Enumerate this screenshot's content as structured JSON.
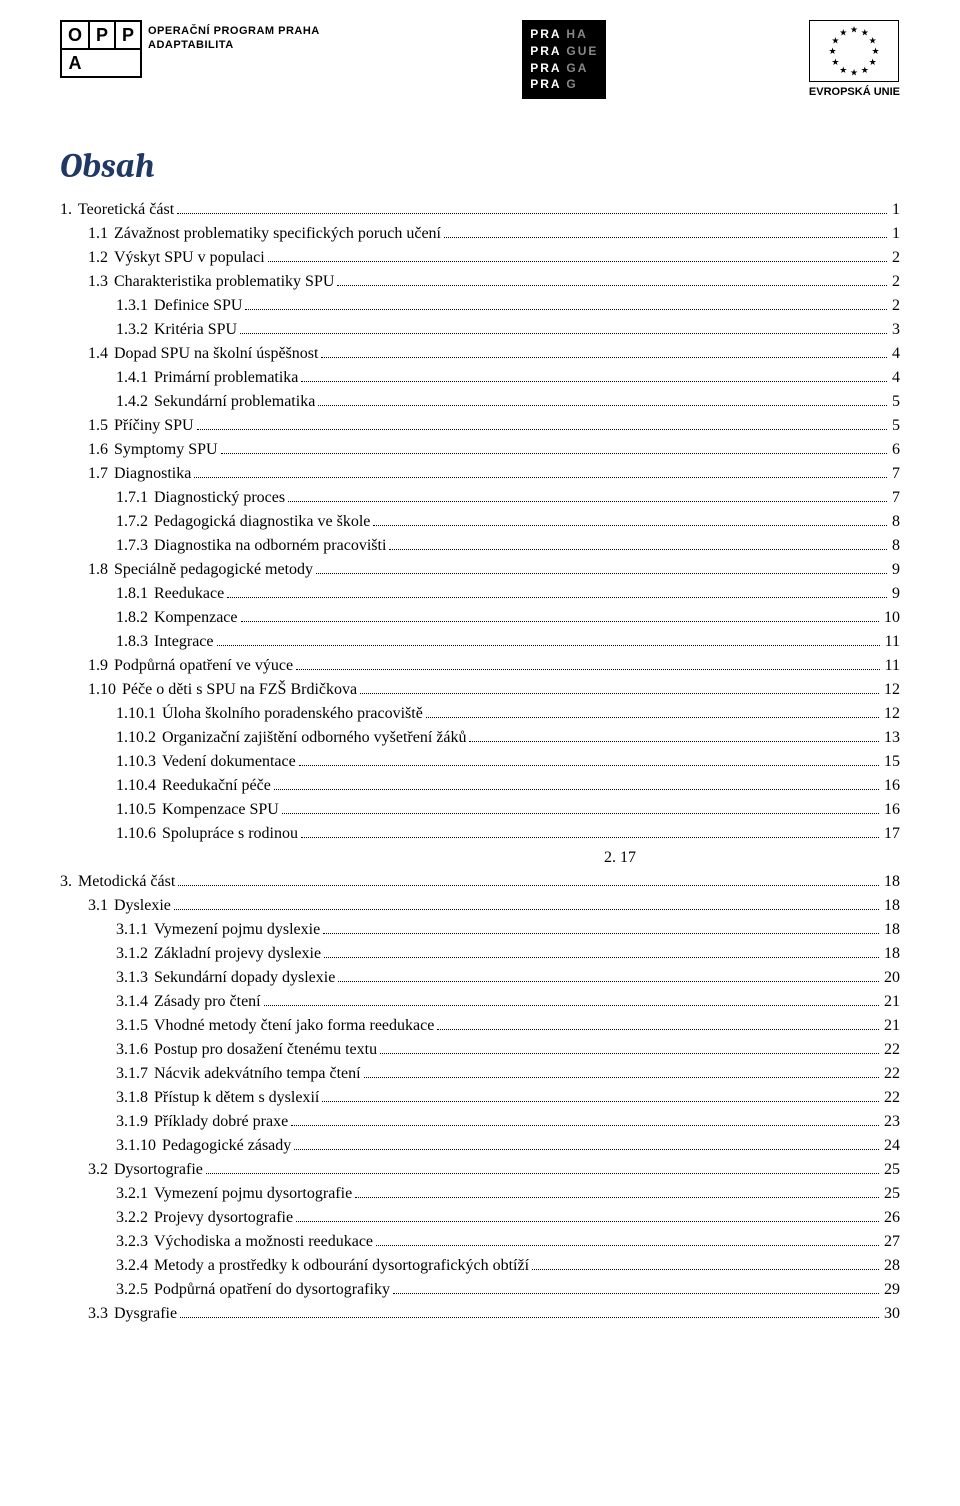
{
  "logos": {
    "oppa": {
      "letters": [
        "O",
        "P",
        "P",
        "A"
      ],
      "subtitle1": "OPERAČNÍ PROGRAM PRAHA",
      "subtitle2": "ADAPTABILITA"
    },
    "praha_lines": [
      [
        "PRA",
        "HA"
      ],
      [
        "PRA",
        "GUE"
      ],
      [
        "PRA",
        "GA"
      ],
      [
        "PRA",
        "G"
      ]
    ],
    "eu_label": "EVROPSKÁ UNIE"
  },
  "title": "Obsah",
  "colors": {
    "title_color": "#1f3864",
    "text_color": "#000000",
    "bg": "#ffffff"
  },
  "toc": [
    {
      "lvl": 1,
      "num": "1.",
      "text": "Teoretická část",
      "page": "1"
    },
    {
      "lvl": 2,
      "num": "1.1",
      "text": "Závažnost problematiky specifických poruch učení",
      "page": "1"
    },
    {
      "lvl": 2,
      "num": "1.2",
      "text": "Výskyt SPU v populaci",
      "page": "2"
    },
    {
      "lvl": 2,
      "num": "1.3",
      "text": "Charakteristika problematiky SPU",
      "page": "2"
    },
    {
      "lvl": 3,
      "num": "1.3.1",
      "text": "Definice SPU",
      "page": "2"
    },
    {
      "lvl": 3,
      "num": "1.3.2",
      "text": "Kritéria SPU",
      "page": "3"
    },
    {
      "lvl": 2,
      "num": "1.4",
      "text": "Dopad SPU na školní úspěšnost",
      "page": "4"
    },
    {
      "lvl": 3,
      "num": "1.4.1",
      "text": "Primární problematika",
      "page": "4"
    },
    {
      "lvl": 3,
      "num": "1.4.2",
      "text": "Sekundární problematika",
      "page": "5"
    },
    {
      "lvl": 2,
      "num": "1.5",
      "text": "Příčiny SPU",
      "page": "5"
    },
    {
      "lvl": 2,
      "num": "1.6",
      "text": "Symptomy SPU",
      "page": "6"
    },
    {
      "lvl": 2,
      "num": "1.7",
      "text": "Diagnostika",
      "page": "7"
    },
    {
      "lvl": 3,
      "num": "1.7.1",
      "text": "Diagnostický proces",
      "page": "7"
    },
    {
      "lvl": 3,
      "num": "1.7.2",
      "text": "Pedagogická diagnostika ve škole",
      "page": "8"
    },
    {
      "lvl": 3,
      "num": "1.7.3",
      "text": "Diagnostika na odborném pracovišti",
      "page": "8"
    },
    {
      "lvl": 2,
      "num": "1.8",
      "text": "Speciálně pedagogické metody",
      "page": "9"
    },
    {
      "lvl": 3,
      "num": "1.8.1",
      "text": "Reedukace",
      "page": "9"
    },
    {
      "lvl": 3,
      "num": "1.8.2",
      "text": "Kompenzace",
      "page": "10"
    },
    {
      "lvl": 3,
      "num": "1.8.3",
      "text": "Integrace",
      "page": "11"
    },
    {
      "lvl": 2,
      "num": "1.9",
      "text": "Podpůrná opatření ve výuce",
      "page": "11"
    },
    {
      "lvl": 2,
      "num": "1.10",
      "text": "Péče o děti s SPU na FZŠ Brdičkova",
      "page": "12"
    },
    {
      "lvl": 3,
      "num": "1.10.1",
      "text": "Úloha školního poradenského pracoviště",
      "page": "12"
    },
    {
      "lvl": 3,
      "num": "1.10.2",
      "text": "Organizační zajištění odborného vyšetření žáků",
      "page": "13"
    },
    {
      "lvl": 3,
      "num": "1.10.3",
      "text": "Vedení dokumentace",
      "page": "15"
    },
    {
      "lvl": 3,
      "num": "1.10.4",
      "text": "Reedukační péče",
      "page": "16"
    },
    {
      "lvl": 3,
      "num": "1.10.5",
      "text": "Kompenzace SPU",
      "page": "16"
    },
    {
      "lvl": 3,
      "num": "1.10.6",
      "text": "Spolupráce s rodinou",
      "page": "17"
    },
    {
      "lvl": 0,
      "num": "",
      "text": "2.    17",
      "page": "",
      "extra": true
    },
    {
      "lvl": 1,
      "num": "3.",
      "text": "Metodická část",
      "page": "18"
    },
    {
      "lvl": 2,
      "num": "3.1",
      "text": "Dyslexie",
      "page": "18"
    },
    {
      "lvl": 3,
      "num": "3.1.1",
      "text": "Vymezení pojmu dyslexie",
      "page": "18"
    },
    {
      "lvl": 3,
      "num": "3.1.2",
      "text": "Základní projevy dyslexie",
      "page": "18"
    },
    {
      "lvl": 3,
      "num": "3.1.3",
      "text": "Sekundární dopady dyslexie",
      "page": "20"
    },
    {
      "lvl": 3,
      "num": "3.1.4",
      "text": "Zásady pro čtení",
      "page": "21"
    },
    {
      "lvl": 3,
      "num": "3.1.5",
      "text": "Vhodné metody čtení jako forma reedukace",
      "page": "21"
    },
    {
      "lvl": 3,
      "num": "3.1.6",
      "text": "Postup pro dosažení čtenému textu",
      "page": "22"
    },
    {
      "lvl": 3,
      "num": "3.1.7",
      "text": "Nácvik adekvátního tempa čtení",
      "page": "22"
    },
    {
      "lvl": 3,
      "num": "3.1.8",
      "text": "Přístup k dětem s dyslexií",
      "page": "22"
    },
    {
      "lvl": 3,
      "num": "3.1.9",
      "text": "Příklady dobré praxe",
      "page": "23"
    },
    {
      "lvl": 3,
      "num": "3.1.10",
      "text": "Pedagogické zásady",
      "page": "24"
    },
    {
      "lvl": 2,
      "num": "3.2",
      "text": "Dysortografie",
      "page": "25"
    },
    {
      "lvl": 3,
      "num": "3.2.1",
      "text": "Vymezení pojmu dysortografie",
      "page": "25"
    },
    {
      "lvl": 3,
      "num": "3.2.2",
      "text": "Projevy dysortografie",
      "page": "26"
    },
    {
      "lvl": 3,
      "num": "3.2.3",
      "text": "Východiska a možnosti reedukace",
      "page": "27"
    },
    {
      "lvl": 3,
      "num": "3.2.4",
      "text": "Metody a prostředky k odbourání dysortografických obtíží",
      "page": "28"
    },
    {
      "lvl": 3,
      "num": "3.2.5",
      "text": "Podpůrná opatření do dysortografiky",
      "page": "29"
    },
    {
      "lvl": 2,
      "num": "3.3",
      "text": "Dysgrafie",
      "page": "30"
    }
  ]
}
